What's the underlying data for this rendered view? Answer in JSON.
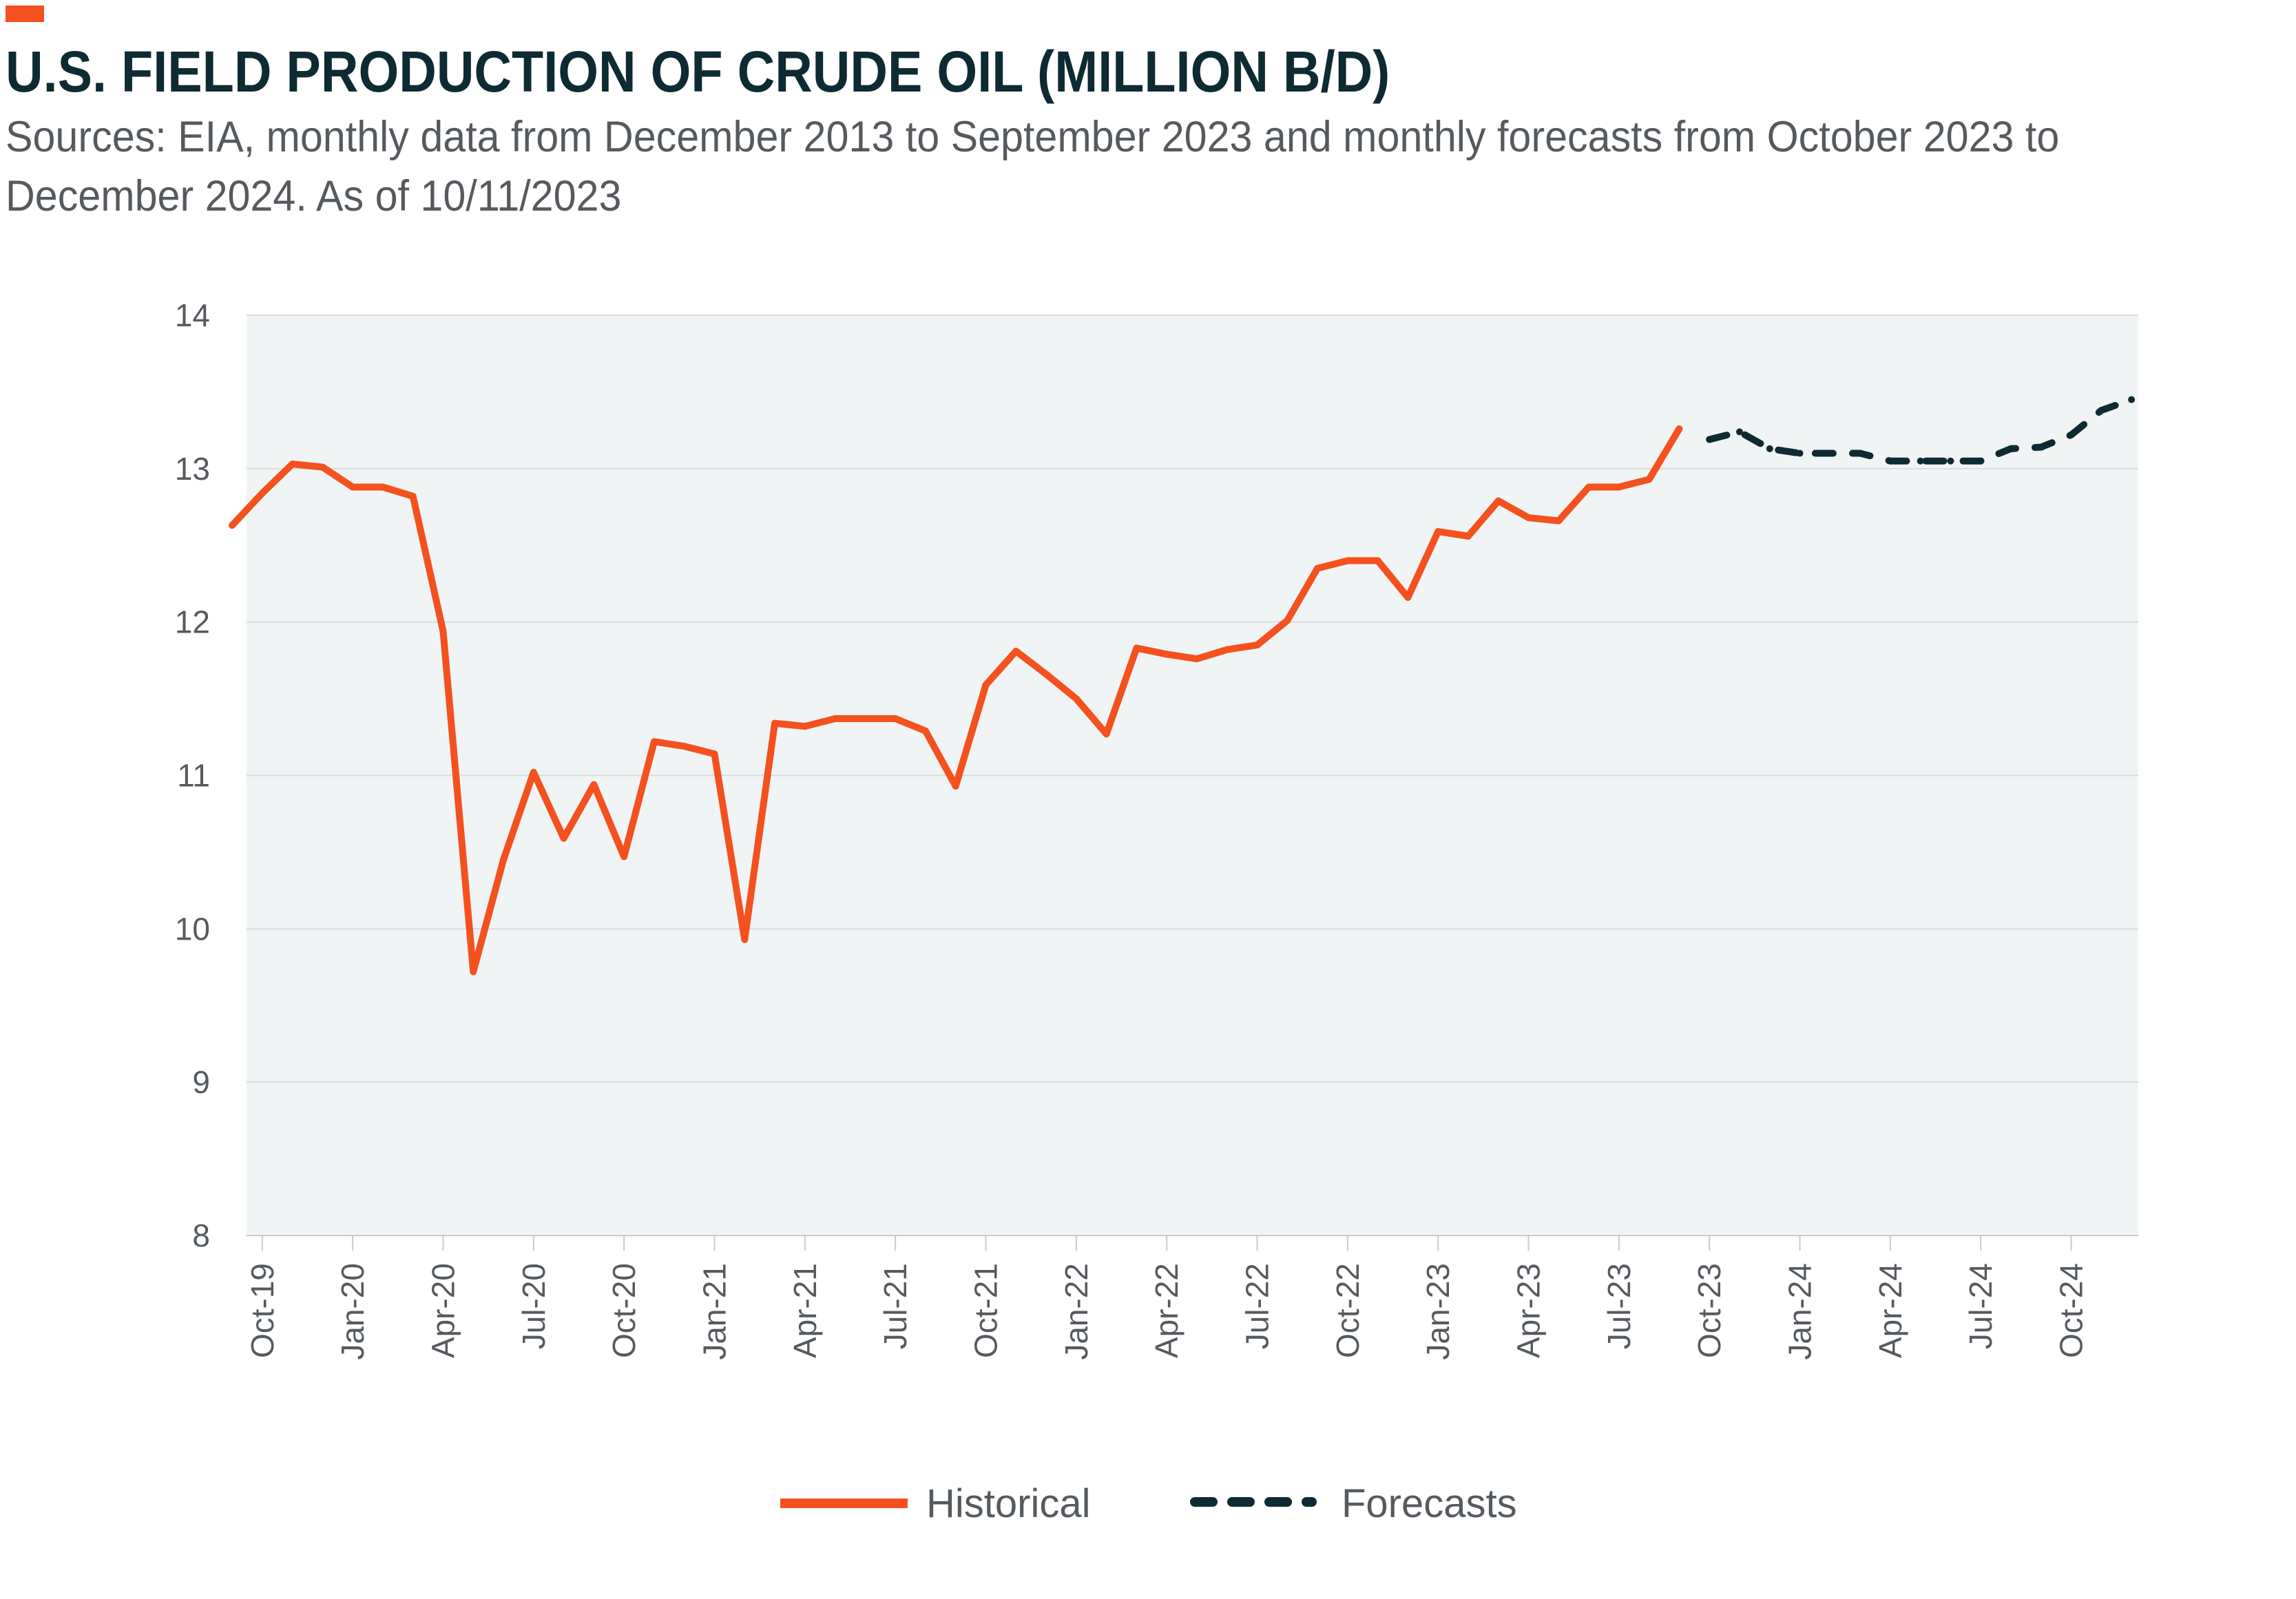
{
  "header": {
    "title": "U.S. FIELD PRODUCTION OF CRUDE OIL (MILLION B/D)",
    "subtitle": "Sources: EIA, monthly data from December 2013 to September 2023 and monthly forecasts from October 2023 to December 2024. As of 10/11/2023"
  },
  "colors": {
    "historical": "#f4511e",
    "forecast": "#0e2a32",
    "plot_background": "#f1f4f4",
    "grid": "#d9dddd",
    "accent": "#f4511e"
  },
  "chart_data": {
    "type": "line",
    "ylim": [
      8,
      14
    ],
    "y_ticks": [
      8,
      9,
      10,
      11,
      12,
      13,
      14
    ],
    "grid": true,
    "legend_position": "bottom",
    "x_tick_labels": [
      "Oct-19",
      "Jan-20",
      "Apr-20",
      "Jul-20",
      "Oct-20",
      "Jan-21",
      "Apr-21",
      "Jul-21",
      "Oct-21",
      "Jan-22",
      "Apr-22",
      "Jul-22",
      "Oct-22",
      "Jan-23",
      "Apr-23",
      "Jul-23",
      "Oct-23",
      "Jan-24",
      "Apr-24",
      "Jul-24",
      "Oct-24"
    ],
    "series": [
      {
        "name": "Historical",
        "style": "solid",
        "x": [
          "Sep-19",
          "Oct-19",
          "Nov-19",
          "Dec-19",
          "Jan-20",
          "Feb-20",
          "Mar-20",
          "Apr-20",
          "May-20",
          "Jun-20",
          "Jul-20",
          "Aug-20",
          "Sep-20",
          "Oct-20",
          "Nov-20",
          "Dec-20",
          "Jan-21",
          "Feb-21",
          "Mar-21",
          "Apr-21",
          "May-21",
          "Jun-21",
          "Jul-21",
          "Aug-21",
          "Sep-21",
          "Oct-21",
          "Nov-21",
          "Dec-21",
          "Jan-22",
          "Feb-22",
          "Mar-22",
          "Apr-22",
          "May-22",
          "Jun-22",
          "Jul-22",
          "Aug-22",
          "Sep-22",
          "Oct-22",
          "Nov-22",
          "Dec-22",
          "Jan-23",
          "Feb-23",
          "Mar-23",
          "Apr-23",
          "May-23",
          "Jun-23",
          "Jul-23",
          "Aug-23",
          "Sep-23"
        ],
        "values": [
          12.63,
          12.84,
          13.03,
          13.01,
          12.88,
          12.88,
          12.82,
          11.94,
          9.72,
          10.45,
          11.02,
          10.59,
          10.94,
          10.47,
          11.22,
          11.19,
          11.14,
          9.93,
          11.34,
          11.32,
          11.37,
          11.37,
          11.37,
          11.29,
          10.93,
          11.59,
          11.81,
          11.66,
          11.5,
          11.27,
          11.83,
          11.79,
          11.76,
          11.82,
          11.85,
          12.01,
          12.35,
          12.4,
          12.4,
          12.16,
          12.59,
          12.56,
          12.79,
          12.68,
          12.66,
          12.88,
          12.88,
          12.93,
          13.26
        ]
      },
      {
        "name": "Forecasts",
        "style": "dashed",
        "x": [
          "Oct-23",
          "Nov-23",
          "Dec-23",
          "Jan-24",
          "Feb-24",
          "Mar-24",
          "Apr-24",
          "May-24",
          "Jun-24",
          "Jul-24",
          "Aug-24",
          "Sep-24",
          "Oct-24",
          "Nov-24",
          "Dec-24"
        ],
        "values": [
          13.19,
          13.24,
          13.13,
          13.1,
          13.1,
          13.1,
          13.05,
          13.05,
          13.05,
          13.05,
          13.13,
          13.14,
          13.22,
          13.38,
          13.45
        ]
      }
    ]
  }
}
